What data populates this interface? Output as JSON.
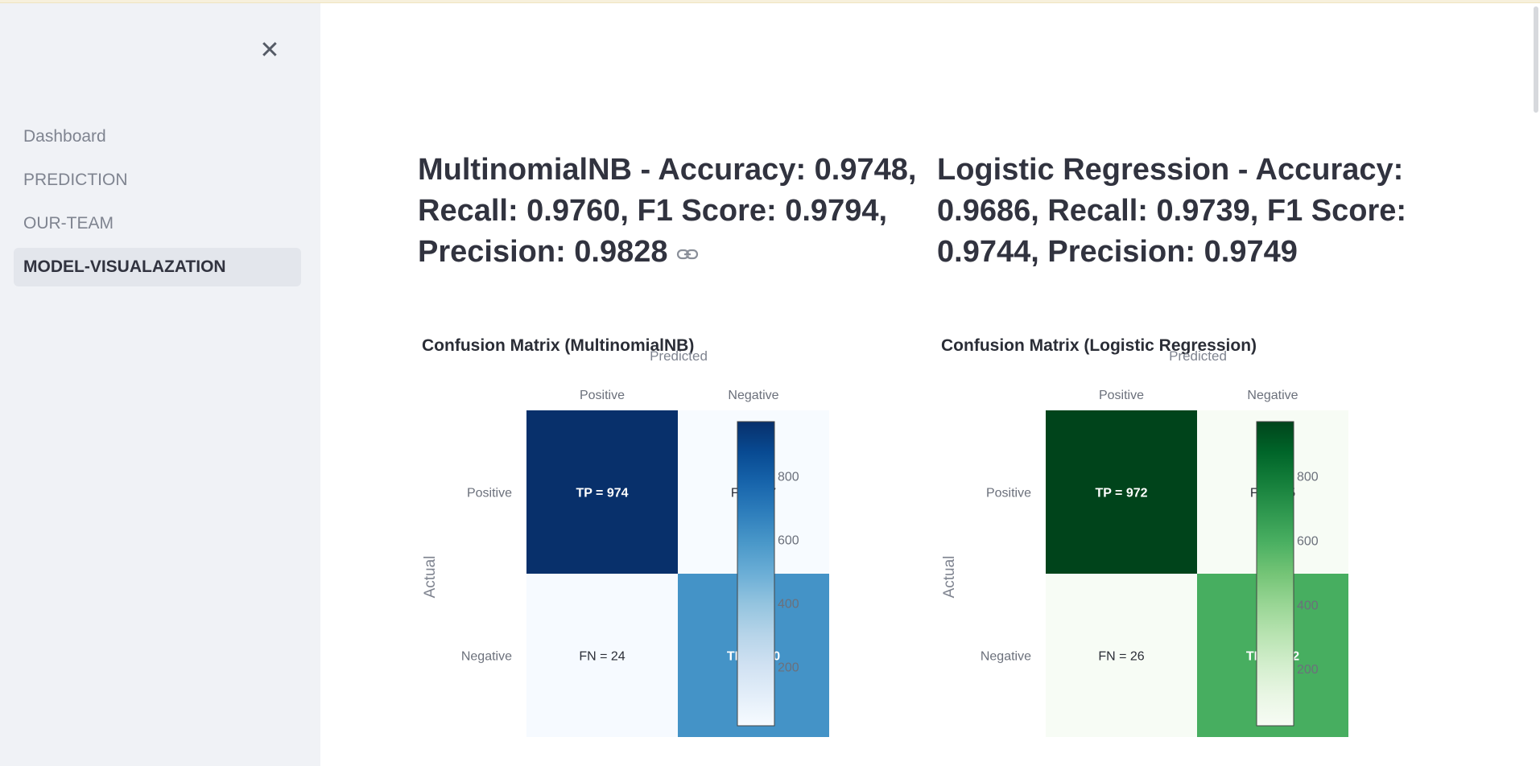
{
  "sidebar": {
    "close_icon": "close-icon",
    "items": [
      {
        "label": "Dashboard"
      },
      {
        "label": "PREDICTION"
      },
      {
        "label": "OUR-TEAM"
      },
      {
        "label": "MODEL-VISUALAZATION",
        "active": true
      }
    ]
  },
  "models": {
    "nb": {
      "title": "MultinomialNB - Accuracy: 0.9748, Recall: 0.9760, F1 Score: 0.9794, Precision: 0.9828"
    },
    "lr": {
      "title": "Logistic Regression - Accuracy: 0.9686, Recall: 0.9739, F1 Score: 0.9744, Precision: 0.9749"
    }
  },
  "link_icon": "link-icon",
  "chart_data": [
    {
      "type": "heatmap",
      "title": "Confusion Matrix (MultinomialNB)",
      "xlabel": "Predicted",
      "ylabel": "Actual",
      "x": [
        "Positive",
        "Negative"
      ],
      "y": [
        "Positive",
        "Negative"
      ],
      "z": [
        [
          974,
          17
        ],
        [
          24,
          610
        ]
      ],
      "cell_labels": [
        [
          "TP = 974",
          "FP = 17"
        ],
        [
          "FN = 24",
          "TN = 610"
        ]
      ],
      "colorscale": "Blues",
      "colorscale_range": [
        17,
        974
      ],
      "colorbar_ticks": [
        200,
        400,
        600,
        800
      ]
    },
    {
      "type": "heatmap",
      "title": "Confusion Matrix (Logistic Regression)",
      "xlabel": "Predicted",
      "ylabel": "Actual",
      "x": [
        "Positive",
        "Negative"
      ],
      "y": [
        "Positive",
        "Negative"
      ],
      "z": [
        [
          972,
          25
        ],
        [
          26,
          602
        ]
      ],
      "cell_labels": [
        [
          "TP = 972",
          "FP = 25"
        ],
        [
          "FN = 26",
          "TN = 602"
        ]
      ],
      "colorscale": "Greens",
      "colorscale_range": [
        25,
        972
      ],
      "colorbar_ticks": [
        200,
        400,
        600,
        800
      ]
    }
  ]
}
